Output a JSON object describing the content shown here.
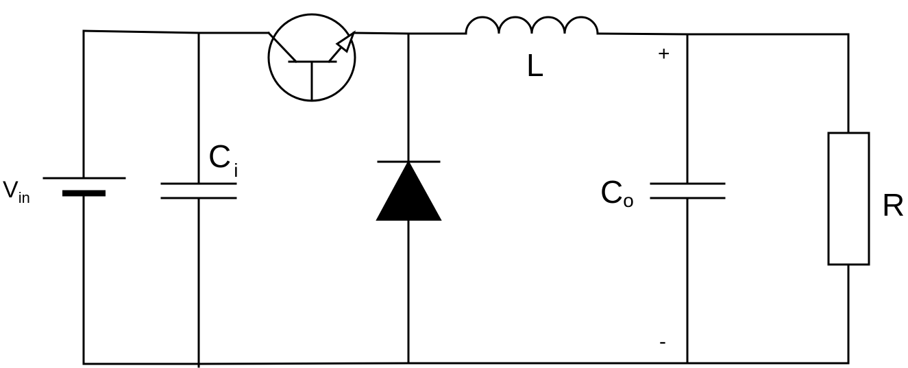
{
  "labels": {
    "source": {
      "main": "V",
      "sub": "in"
    },
    "input_capacitor": {
      "main": "C",
      "sub": "i"
    },
    "inductor": "L",
    "output_capacitor": {
      "main": "C",
      "sub": "o"
    },
    "load_resistor": "R",
    "output_plus": "+",
    "output_minus": "-"
  },
  "colors": {
    "stroke": "#000000",
    "background": "#ffffff"
  }
}
